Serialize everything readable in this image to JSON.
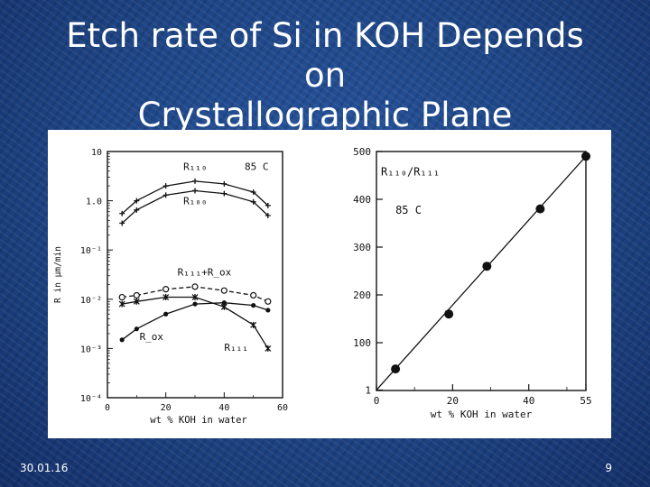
{
  "slide": {
    "title_lines": [
      "Etch rate of Si in KOH Depends",
      "on",
      "Crystallographic Plane"
    ],
    "date": "30.01.16",
    "page_number": "9"
  },
  "chart_data": [
    {
      "type": "line",
      "scale": "log-y",
      "xlabel": "wt % KOH in water",
      "ylabel": "R in µm/min",
      "x_ticks": [
        "0",
        "20",
        "40",
        "60"
      ],
      "y_ticks": [
        "10",
        "1.0",
        "10⁻¹",
        "10⁻²",
        "10⁻³",
        "10⁻⁴"
      ],
      "xlim": [
        0,
        60
      ],
      "ylim": [
        0.0001,
        10
      ],
      "annotations": [
        "R₁₁₀",
        "R₁₀₀",
        "85 C",
        "R₁₁₁+R_ox",
        "R_ox",
        "R₁₁₁"
      ],
      "series": [
        {
          "name": "R₁₁₀",
          "marker": "plus",
          "points": [
            [
              5,
              0.55
            ],
            [
              10,
              1.0
            ],
            [
              20,
              2.0
            ],
            [
              30,
              2.5
            ],
            [
              40,
              2.2
            ],
            [
              50,
              1.5
            ],
            [
              55,
              0.8
            ]
          ]
        },
        {
          "name": "R₁₀₀",
          "marker": "plus",
          "points": [
            [
              5,
              0.35
            ],
            [
              10,
              0.65
            ],
            [
              20,
              1.3
            ],
            [
              30,
              1.6
            ],
            [
              40,
              1.4
            ],
            [
              50,
              0.95
            ],
            [
              55,
              0.5
            ]
          ]
        },
        {
          "name": "R₁₁₁+R_ox",
          "marker": "circle",
          "points": [
            [
              5,
              0.011
            ],
            [
              10,
              0.012
            ],
            [
              20,
              0.016
            ],
            [
              30,
              0.018
            ],
            [
              40,
              0.015
            ],
            [
              50,
              0.012
            ],
            [
              55,
              0.009
            ]
          ]
        },
        {
          "name": "R₁₁₁",
          "marker": "star",
          "points": [
            [
              5,
              0.008
            ],
            [
              10,
              0.009
            ],
            [
              20,
              0.011
            ],
            [
              30,
              0.011
            ],
            [
              40,
              0.007
            ],
            [
              50,
              0.003
            ],
            [
              55,
              0.001
            ]
          ]
        },
        {
          "name": "R_ox",
          "marker": "dot",
          "points": [
            [
              5,
              0.0015
            ],
            [
              10,
              0.0025
            ],
            [
              20,
              0.005
            ],
            [
              30,
              0.008
            ],
            [
              40,
              0.0085
            ],
            [
              50,
              0.0075
            ],
            [
              55,
              0.006
            ]
          ]
        }
      ]
    },
    {
      "type": "line",
      "xlabel": "wt % KOH in water",
      "ylabel": "",
      "x_ticks": [
        "0",
        "20",
        "40",
        "55"
      ],
      "y_ticks": [
        "1",
        "100",
        "200",
        "300",
        "400",
        "500"
      ],
      "xlim": [
        0,
        55
      ],
      "ylim": [
        0,
        500
      ],
      "annotations": [
        "R₁₁₀/R₁₁₁",
        "85 C"
      ],
      "series": [
        {
          "name": "R₁₁₀/R₁₁₁",
          "marker": "dot",
          "points": [
            [
              5,
              45
            ],
            [
              19,
              160
            ],
            [
              29,
              260
            ],
            [
              43,
              380
            ],
            [
              55,
              490
            ]
          ]
        }
      ]
    }
  ]
}
